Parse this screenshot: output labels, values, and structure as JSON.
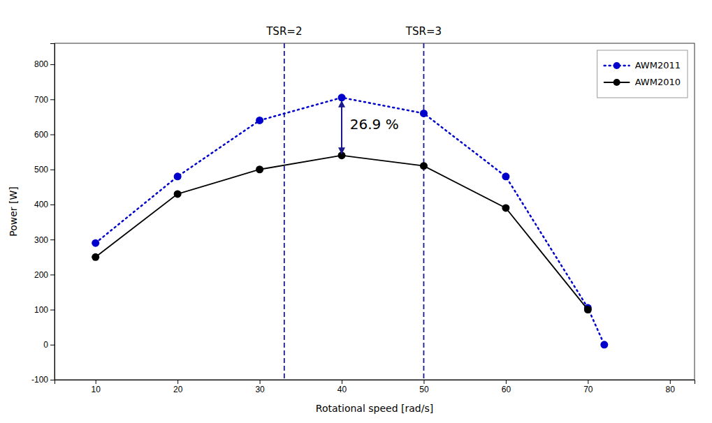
{
  "chart_data": {
    "type": "line",
    "xlabel": "Rotational speed [rad/s]",
    "ylabel": "Power [W]",
    "series": [
      {
        "name": "AWM2011",
        "color": "#0000CC",
        "line_style": "dotted",
        "marker": "circle",
        "x": [
          10,
          20,
          30,
          40,
          50,
          60,
          70,
          72
        ],
        "values": [
          290,
          480,
          640,
          705,
          660,
          480,
          105,
          0
        ]
      },
      {
        "name": "AWM2010",
        "color": "#000000",
        "line_style": "solid",
        "marker": "circle",
        "x": [
          10,
          20,
          30,
          40,
          50,
          60,
          70
        ],
        "values": [
          250,
          430,
          500,
          540,
          510,
          390,
          100
        ]
      }
    ],
    "vlines": [
      {
        "x": 33,
        "label": "TSR=2",
        "color": "#1a1a8c"
      },
      {
        "x": 50,
        "label": "TSR=3",
        "color": "#1a1a8c"
      }
    ],
    "arrows": [
      {
        "x": 40,
        "y_start": 545,
        "y_end": 695,
        "color": "#1a1a8c"
      }
    ],
    "annotations": [
      {
        "text": "26.9 %",
        "x": 41,
        "y": 625
      }
    ],
    "xlim": [
      5,
      83
    ],
    "ylim": [
      -100,
      860
    ],
    "xticks": [
      10,
      20,
      30,
      40,
      50,
      60,
      70,
      80
    ],
    "yticks": [
      -100,
      0,
      100,
      200,
      300,
      400,
      500,
      600,
      700,
      800
    ],
    "grid": false,
    "legend": "upper right"
  }
}
